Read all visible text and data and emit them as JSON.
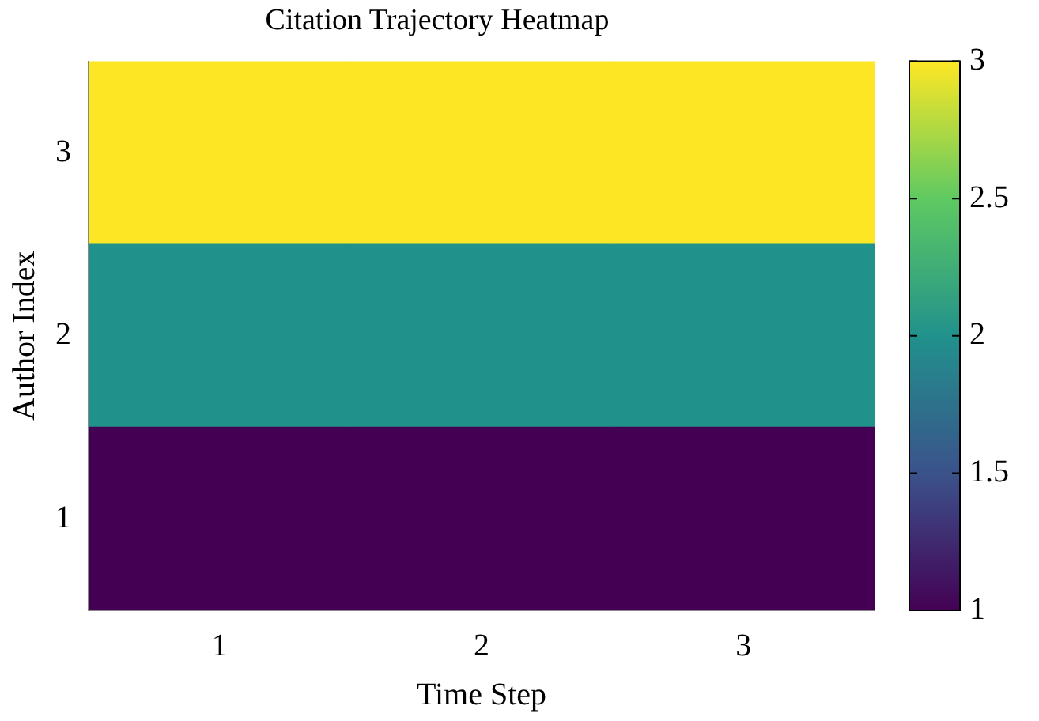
{
  "chart_data": {
    "type": "heatmap",
    "title": "Citation Trajectory Heatmap",
    "xlabel": "Time Step",
    "ylabel": "Author Index",
    "categories": [
      "1",
      "2",
      "3"
    ],
    "y_categories": [
      "3",
      "2",
      "1"
    ],
    "cells": [
      [
        3,
        3,
        3
      ],
      [
        2,
        2,
        2
      ],
      [
        1,
        1,
        1
      ]
    ],
    "clim": [
      1,
      3
    ],
    "cticks": [
      1,
      1.5,
      2,
      2.5,
      3
    ]
  }
}
